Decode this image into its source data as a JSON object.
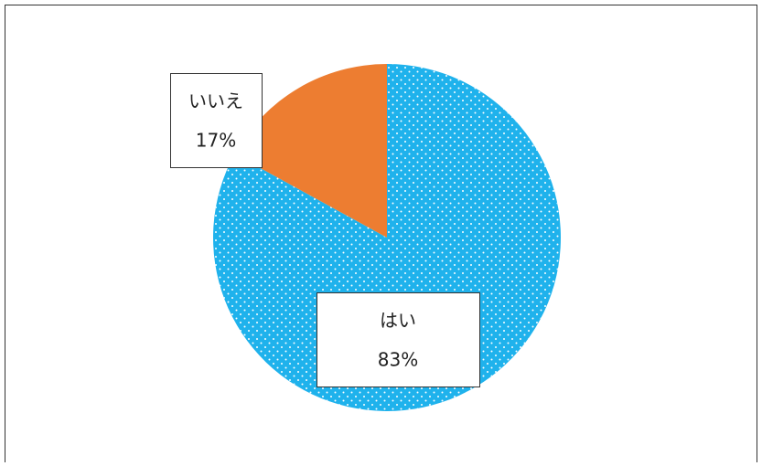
{
  "chart_data": {
    "type": "pie",
    "categories": [
      "はい",
      "いいえ"
    ],
    "values": [
      83,
      17
    ],
    "value_labels": [
      "83%",
      "17%"
    ],
    "colors": [
      "#1fb2ec",
      "#ed7d31"
    ],
    "patterns": [
      "dots",
      "solid"
    ]
  }
}
